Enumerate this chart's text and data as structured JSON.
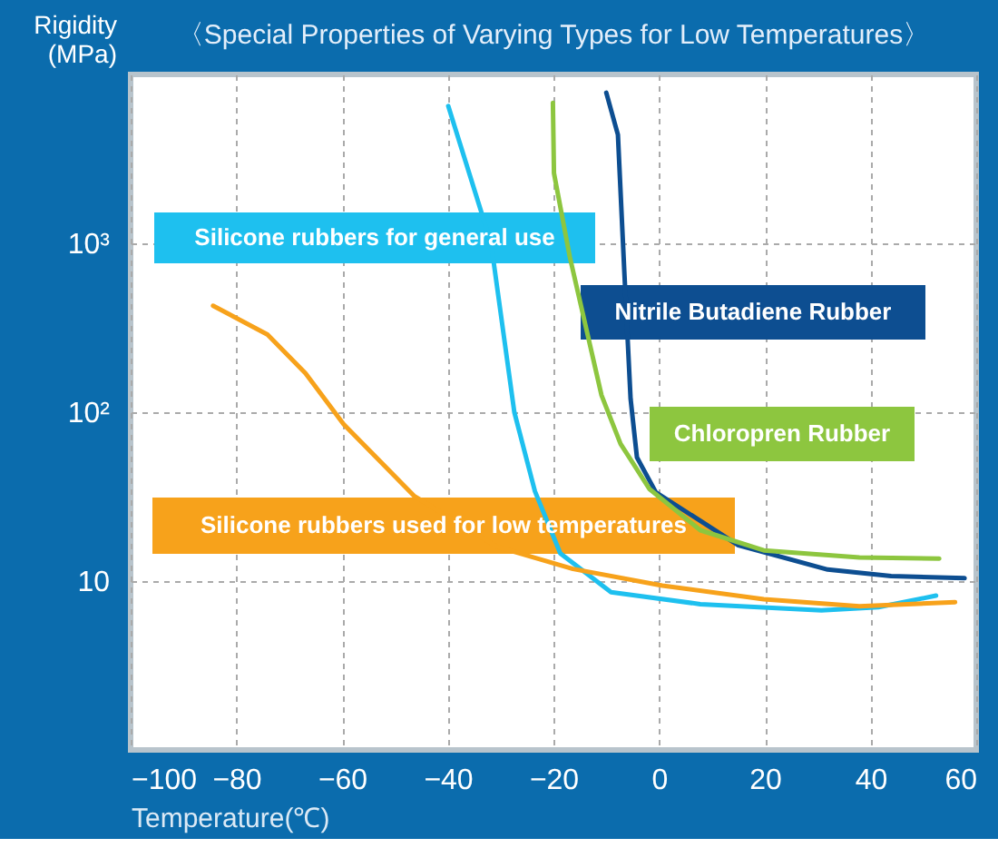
{
  "chart_data": {
    "type": "line",
    "title": "〈Special Properties of Varying Types for Low Temperatures〉",
    "xlabel": "Temperature(℃)",
    "ylabel": "Rigidity (MPa)",
    "log": "y",
    "grid": true,
    "marker": "none",
    "line_style": "solid",
    "xlim": [
      -100,
      60
    ],
    "xticks": [
      -100,
      -80,
      -60,
      -40,
      -20,
      0,
      20,
      40,
      60
    ],
    "ylim": [
      1,
      10000
    ],
    "yticks": [
      10,
      {
        "value": 100,
        "label": "10²"
      },
      {
        "value": 1000,
        "label": "10³"
      }
    ],
    "series": [
      {
        "name": "Silicone rubbers for general use",
        "color": "#1ec0ef",
        "x": [
          -39.9,
          -34.8,
          -31.8,
          -27.4,
          -23.5,
          -18.7,
          -9.1,
          7.8,
          30.7,
          41.5,
          52.4
        ],
        "values": [
          6500,
          2000,
          1000,
          100,
          34,
          14.6,
          8.6,
          7.3,
          6.7,
          7.0,
          8.2
        ]
      },
      {
        "name": "Nitrile Butadiene Rubber",
        "color": "#0d4e91",
        "x": [
          -10,
          -7.8,
          -6.6,
          -5.4,
          -4.2,
          -0.6,
          15,
          31.9,
          43.9,
          57.8
        ],
        "values": [
          7800,
          4400,
          690,
          120,
          54,
          33.5,
          16.3,
          11.7,
          10.7,
          10.4
        ]
      },
      {
        "name": "Chloropren Rubber",
        "color": "#8dc63f",
        "x": [
          -20.1,
          -19.9,
          -16.9,
          -10.9,
          -7.3,
          -1.8,
          7.8,
          19.8,
          37.9,
          53
        ],
        "values": [
          6800,
          2600,
          830,
          126,
          65,
          35,
          20,
          15.2,
          13.8,
          13.6
        ]
      },
      {
        "name": "Silicone rubbers used for low temperatures",
        "color": "#f7a21b",
        "x": [
          -84.4,
          -74.1,
          -66.9,
          -59.7,
          -46.4,
          -30.7,
          -16.3,
          0.6,
          19.8,
          37.9,
          56
        ],
        "values": [
          427,
          288,
          170,
          85,
          32,
          16,
          11.8,
          9.4,
          7.8,
          7.1,
          7.5
        ]
      }
    ]
  }
}
